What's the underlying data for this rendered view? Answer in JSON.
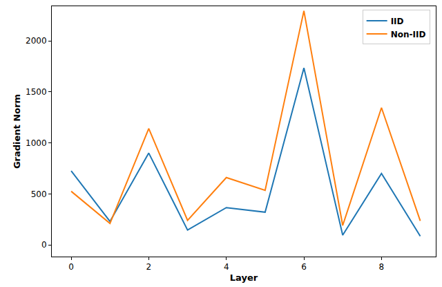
{
  "chart_data": {
    "type": "line",
    "x": [
      0,
      1,
      2,
      3,
      4,
      5,
      6,
      7,
      8,
      9
    ],
    "x_label": "Layer",
    "y_label": "Gradient Norm",
    "series": [
      {
        "name": "IID",
        "color": "#1f77b4",
        "values": [
          725,
          230,
          900,
          145,
          365,
          320,
          1735,
          95,
          700,
          85
        ]
      },
      {
        "name": "Non-IID",
        "color": "#ff7f0e",
        "values": [
          525,
          210,
          1140,
          240,
          660,
          535,
          2295,
          190,
          1345,
          235
        ]
      }
    ],
    "xlim": [
      -0.5,
      9.4
    ],
    "xticks": [
      0,
      2,
      4,
      6,
      8
    ],
    "ylim": [
      -115,
      2340
    ],
    "yticks": [
      0,
      500,
      1000,
      1500,
      2000
    ],
    "grid": false,
    "legend": "upper right"
  }
}
